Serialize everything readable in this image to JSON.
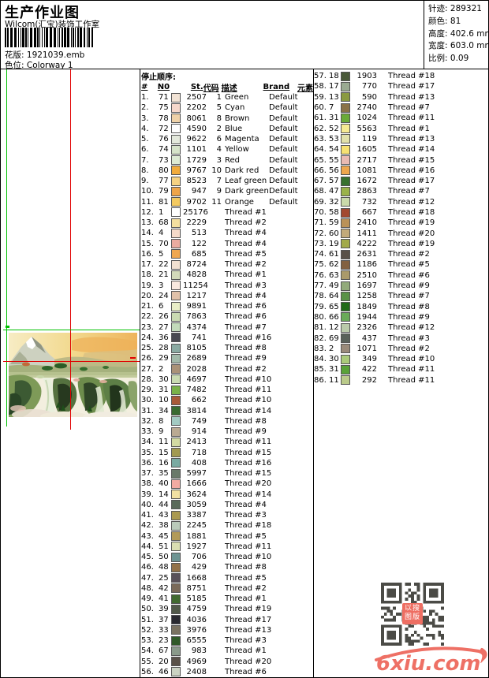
{
  "header": {
    "title": "生产作业图",
    "subtitle": "Wilcom(汇宝)装饰工作室",
    "design_label": "花版:",
    "design_value": "1921039.emb",
    "colorway_label": "色位:",
    "colorway_value": "Colorway 1",
    "stats": [
      {
        "label": "针迹:",
        "value": "289321"
      },
      {
        "label": "颜色:",
        "value": "81"
      },
      {
        "label": "高度:",
        "value": "402.6 mm"
      },
      {
        "label": "宽度:",
        "value": "603.0 mm"
      },
      {
        "label": "比例:",
        "value": "0.09"
      }
    ]
  },
  "table": {
    "stop_header": "停止顺序:",
    "columns": [
      "#",
      "N0",
      "St.",
      "代码",
      "描述",
      "Brand",
      "元素"
    ],
    "rows": [
      {
        "seq": "1.",
        "no": "71",
        "color": "#F2E3D5",
        "st": "2507",
        "code": "1",
        "desc": "Green",
        "brand": "Default"
      },
      {
        "seq": "2.",
        "no": "75",
        "color": "#F6D8CB",
        "st": "2202",
        "code": "5",
        "desc": "Cyan",
        "brand": "Default"
      },
      {
        "seq": "3.",
        "no": "78",
        "color": "#EFD2A8",
        "st": "8061",
        "code": "8",
        "desc": "Brown",
        "brand": "Default"
      },
      {
        "seq": "4.",
        "no": "72",
        "color": "#FFFFFF",
        "st": "4590",
        "code": "2",
        "desc": "Blue",
        "brand": "Default"
      },
      {
        "seq": "5.",
        "no": "76",
        "color": "#E3E8DB",
        "st": "9622",
        "code": "6",
        "desc": "Magenta",
        "brand": "Default"
      },
      {
        "seq": "6.",
        "no": "74",
        "color": "#D6E3C9",
        "st": "1101",
        "code": "4",
        "desc": "Yellow",
        "brand": "Default"
      },
      {
        "seq": "7.",
        "no": "73",
        "color": "#DDEAD3",
        "st": "1729",
        "code": "3",
        "desc": "Red",
        "brand": "Default"
      },
      {
        "seq": "8.",
        "no": "80",
        "color": "#F1AB3B",
        "st": "9767",
        "code": "10",
        "desc": "Dark red",
        "brand": "Default"
      },
      {
        "seq": "9.",
        "no": "77",
        "color": "#F6D282",
        "st": "8523",
        "code": "7",
        "desc": "Leaf green",
        "brand": "Default"
      },
      {
        "seq": "10.",
        "no": "79",
        "color": "#EFA549",
        "st": "947",
        "code": "9",
        "desc": "Dark green",
        "brand": "Default"
      },
      {
        "seq": "11.",
        "no": "81",
        "color": "#F4CA61",
        "st": "9702",
        "code": "11",
        "desc": "Orange",
        "brand": "Default"
      },
      {
        "seq": "12.",
        "no": "1",
        "color": "#FFFFFF",
        "st": "25176",
        "code": "",
        "desc": "Thread #1",
        "brand": ""
      },
      {
        "seq": "13.",
        "no": "68",
        "color": "#F4DF9F",
        "st": "2229",
        "code": "",
        "desc": "Thread #2",
        "brand": ""
      },
      {
        "seq": "14.",
        "no": "4",
        "color": "#F6DAC8",
        "st": "513",
        "code": "",
        "desc": "Thread #4",
        "brand": ""
      },
      {
        "seq": "15.",
        "no": "70",
        "color": "#E9ABA0",
        "st": "122",
        "code": "",
        "desc": "Thread #4",
        "brand": ""
      },
      {
        "seq": "16.",
        "no": "5",
        "color": "#EFA750",
        "st": "685",
        "code": "",
        "desc": "Thread #5",
        "brand": ""
      },
      {
        "seq": "17.",
        "no": "22",
        "color": "#F2E1D1",
        "st": "8724",
        "code": "",
        "desc": "Thread #2",
        "brand": ""
      },
      {
        "seq": "18.",
        "no": "21",
        "color": "#D3DABA",
        "st": "4828",
        "code": "",
        "desc": "Thread #1",
        "brand": ""
      },
      {
        "seq": "19.",
        "no": "3",
        "color": "#F8E8DF",
        "st": "11254",
        "code": "",
        "desc": "Thread #3",
        "brand": ""
      },
      {
        "seq": "20.",
        "no": "24",
        "color": "#E1C2AA",
        "st": "1217",
        "code": "",
        "desc": "Thread #4",
        "brand": ""
      },
      {
        "seq": "21.",
        "no": "6",
        "color": "#E9EEC8",
        "st": "9891",
        "code": "",
        "desc": "Thread #6",
        "brand": ""
      },
      {
        "seq": "22.",
        "no": "26",
        "color": "#CADAB2",
        "st": "7863",
        "code": "",
        "desc": "Thread #6",
        "brand": ""
      },
      {
        "seq": "23.",
        "no": "27",
        "color": "#C3DABA",
        "st": "4374",
        "code": "",
        "desc": "Thread #7",
        "brand": ""
      },
      {
        "seq": "24.",
        "no": "36",
        "color": "#494951",
        "st": "741",
        "code": "",
        "desc": "Thread #16",
        "brand": ""
      },
      {
        "seq": "25.",
        "no": "28",
        "color": "#8AAAA2",
        "st": "8105",
        "code": "",
        "desc": "Thread #8",
        "brand": ""
      },
      {
        "seq": "26.",
        "no": "29",
        "color": "#A2BAAA",
        "st": "2689",
        "code": "",
        "desc": "Thread #9",
        "brand": ""
      },
      {
        "seq": "27.",
        "no": "2",
        "color": "#AA9278",
        "st": "2028",
        "code": "",
        "desc": "Thread #2",
        "brand": ""
      },
      {
        "seq": "28.",
        "no": "30",
        "color": "#CADCB2",
        "st": "4697",
        "code": "",
        "desc": "Thread #10",
        "brand": ""
      },
      {
        "seq": "29.",
        "no": "31",
        "color": "#7AB249",
        "st": "7482",
        "code": "",
        "desc": "Thread #11",
        "brand": ""
      },
      {
        "seq": "30.",
        "no": "10",
        "color": "#A85938",
        "st": "662",
        "code": "",
        "desc": "Thread #10",
        "brand": ""
      },
      {
        "seq": "31.",
        "no": "34",
        "color": "#386A30",
        "st": "3814",
        "code": "",
        "desc": "Thread #14",
        "brand": ""
      },
      {
        "seq": "32.",
        "no": "8",
        "color": "#A2CAC2",
        "st": "749",
        "code": "",
        "desc": "Thread #8",
        "brand": ""
      },
      {
        "seq": "33.",
        "no": "9",
        "color": "#BAAA92",
        "st": "914",
        "code": "",
        "desc": "Thread #9",
        "brand": ""
      },
      {
        "seq": "34.",
        "no": "11",
        "color": "#D2DAA2",
        "st": "2413",
        "code": "",
        "desc": "Thread #11",
        "brand": ""
      },
      {
        "seq": "35.",
        "no": "15",
        "color": "#A29A51",
        "st": "718",
        "code": "",
        "desc": "Thread #15",
        "brand": ""
      },
      {
        "seq": "36.",
        "no": "16",
        "color": "#7AAAA2",
        "st": "408",
        "code": "",
        "desc": "Thread #16",
        "brand": ""
      },
      {
        "seq": "37.",
        "no": "35",
        "color": "#6A7A6A",
        "st": "5997",
        "code": "",
        "desc": "Thread #15",
        "brand": ""
      },
      {
        "seq": "38.",
        "no": "40",
        "color": "#F1AAA2",
        "st": "1666",
        "code": "",
        "desc": "Thread #20",
        "brand": ""
      },
      {
        "seq": "39.",
        "no": "14",
        "color": "#F1E1A2",
        "st": "3624",
        "code": "",
        "desc": "Thread #14",
        "brand": ""
      },
      {
        "seq": "40.",
        "no": "44",
        "color": "#596A59",
        "st": "3059",
        "code": "",
        "desc": "Thread #4",
        "brand": ""
      },
      {
        "seq": "41.",
        "no": "43",
        "color": "#AA9A51",
        "st": "3387",
        "code": "",
        "desc": "Thread #3",
        "brand": ""
      },
      {
        "seq": "42.",
        "no": "38",
        "color": "#BACABA",
        "st": "2245",
        "code": "",
        "desc": "Thread #18",
        "brand": ""
      },
      {
        "seq": "43.",
        "no": "45",
        "color": "#B29A59",
        "st": "1881",
        "code": "",
        "desc": "Thread #5",
        "brand": ""
      },
      {
        "seq": "44.",
        "no": "51",
        "color": "#DADEB2",
        "st": "1927",
        "code": "",
        "desc": "Thread #11",
        "brand": ""
      },
      {
        "seq": "45.",
        "no": "50",
        "color": "#6D9492",
        "st": "706",
        "code": "",
        "desc": "Thread #10",
        "brand": ""
      },
      {
        "seq": "46.",
        "no": "48",
        "color": "#927249",
        "st": "429",
        "code": "",
        "desc": "Thread #8",
        "brand": ""
      },
      {
        "seq": "47.",
        "no": "25",
        "color": "#595159",
        "st": "1668",
        "code": "",
        "desc": "Thread #5",
        "brand": ""
      },
      {
        "seq": "48.",
        "no": "42",
        "color": "#7A6A59",
        "st": "8751",
        "code": "",
        "desc": "Thread #2",
        "brand": ""
      },
      {
        "seq": "49.",
        "no": "41",
        "color": "#416A30",
        "st": "5185",
        "code": "",
        "desc": "Thread #1",
        "brand": ""
      },
      {
        "seq": "50.",
        "no": "39",
        "color": "#515949",
        "st": "4759",
        "code": "",
        "desc": "Thread #19",
        "brand": ""
      },
      {
        "seq": "51.",
        "no": "37",
        "color": "#292930",
        "st": "4036",
        "code": "",
        "desc": "Thread #17",
        "brand": ""
      },
      {
        "seq": "52.",
        "no": "33",
        "color": "#7A7261",
        "st": "3976",
        "code": "",
        "desc": "Thread #13",
        "brand": ""
      },
      {
        "seq": "53.",
        "no": "23",
        "color": "#305928",
        "st": "6555",
        "code": "",
        "desc": "Thread #3",
        "brand": ""
      },
      {
        "seq": "54.",
        "no": "67",
        "color": "#8A9A8A",
        "st": "983",
        "code": "",
        "desc": "Thread #1",
        "brand": ""
      },
      {
        "seq": "55.",
        "no": "20",
        "color": "#595148",
        "st": "4969",
        "code": "",
        "desc": "Thread #20",
        "brand": ""
      },
      {
        "seq": "56.",
        "no": "46",
        "color": "#CAD2C2",
        "st": "2408",
        "code": "",
        "desc": "Thread #6",
        "brand": ""
      },
      {
        "seq": "57.",
        "no": "18",
        "color": "#495938",
        "st": "1903",
        "code": "",
        "desc": "Thread #18",
        "brand": ""
      },
      {
        "seq": "58.",
        "no": "17",
        "color": "#9AAA92",
        "st": "770",
        "code": "",
        "desc": "Thread #17",
        "brand": ""
      },
      {
        "seq": "59.",
        "no": "13",
        "color": "#8A9A41",
        "st": "590",
        "code": "",
        "desc": "Thread #13",
        "brand": ""
      },
      {
        "seq": "60.",
        "no": "7",
        "color": "#8A7248",
        "st": "2740",
        "code": "",
        "desc": "Thread #7",
        "brand": ""
      },
      {
        "seq": "61.",
        "no": "31",
        "color": "#6AAA38",
        "st": "1024",
        "code": "",
        "desc": "Thread #11",
        "brand": ""
      },
      {
        "seq": "62.",
        "no": "52",
        "color": "#F6EA92",
        "st": "5563",
        "code": "",
        "desc": "Thread #1",
        "brand": ""
      },
      {
        "seq": "63.",
        "no": "53",
        "color": "#E1E1AA",
        "st": "119",
        "code": "",
        "desc": "Thread #13",
        "brand": ""
      },
      {
        "seq": "64.",
        "no": "54",
        "color": "#F6E172",
        "st": "1605",
        "code": "",
        "desc": "Thread #14",
        "brand": ""
      },
      {
        "seq": "65.",
        "no": "55",
        "color": "#EABAB2",
        "st": "2717",
        "code": "",
        "desc": "Thread #15",
        "brand": ""
      },
      {
        "seq": "66.",
        "no": "56",
        "color": "#EFA74D",
        "st": "1081",
        "code": "",
        "desc": "Thread #16",
        "brand": ""
      },
      {
        "seq": "67.",
        "no": "57",
        "color": "#38712E",
        "st": "1672",
        "code": "",
        "desc": "Thread #17",
        "brand": ""
      },
      {
        "seq": "68.",
        "no": "47",
        "color": "#9AB249",
        "st": "2863",
        "code": "",
        "desc": "Thread #7",
        "brand": ""
      },
      {
        "seq": "69.",
        "no": "32",
        "color": "#CADAAA",
        "st": "732",
        "code": "",
        "desc": "Thread #12",
        "brand": ""
      },
      {
        "seq": "70.",
        "no": "58",
        "color": "#A24930",
        "st": "667",
        "code": "",
        "desc": "Thread #18",
        "brand": ""
      },
      {
        "seq": "71.",
        "no": "59",
        "color": "#BA9258",
        "st": "2410",
        "code": "",
        "desc": "Thread #19",
        "brand": ""
      },
      {
        "seq": "72.",
        "no": "60",
        "color": "#C2AA7A",
        "st": "1411",
        "code": "",
        "desc": "Thread #20",
        "brand": ""
      },
      {
        "seq": "73.",
        "no": "19",
        "color": "#A2AA49",
        "st": "4222",
        "code": "",
        "desc": "Thread #19",
        "brand": ""
      },
      {
        "seq": "74.",
        "no": "61",
        "color": "#595148",
        "st": "2631",
        "code": "",
        "desc": "Thread #2",
        "brand": ""
      },
      {
        "seq": "75.",
        "no": "62",
        "color": "#826141",
        "st": "1186",
        "code": "",
        "desc": "Thread #5",
        "brand": ""
      },
      {
        "seq": "76.",
        "no": "63",
        "color": "#AA9A6A",
        "st": "2510",
        "code": "",
        "desc": "Thread #6",
        "brand": ""
      },
      {
        "seq": "77.",
        "no": "49",
        "color": "#92AA7A",
        "st": "1697",
        "code": "",
        "desc": "Thread #9",
        "brand": ""
      },
      {
        "seq": "78.",
        "no": "64",
        "color": "#599248",
        "st": "1258",
        "code": "",
        "desc": "Thread #7",
        "brand": ""
      },
      {
        "seq": "79.",
        "no": "65",
        "color": "#216A19",
        "st": "1849",
        "code": "",
        "desc": "Thread #8",
        "brand": ""
      },
      {
        "seq": "80.",
        "no": "66",
        "color": "#6AAA59",
        "st": "1944",
        "code": "",
        "desc": "Thread #9",
        "brand": ""
      },
      {
        "seq": "81.",
        "no": "12",
        "color": "#BACAAA",
        "st": "2326",
        "code": "",
        "desc": "Thread #12",
        "brand": ""
      },
      {
        "seq": "82.",
        "no": "69",
        "color": "#59615A",
        "st": "437",
        "code": "",
        "desc": "Thread #3",
        "brand": ""
      },
      {
        "seq": "83.",
        "no": "2",
        "color": "#9A8A7A",
        "st": "1071",
        "code": "",
        "desc": "Thread #2",
        "brand": ""
      },
      {
        "seq": "84.",
        "no": "30",
        "color": "#AACA7A",
        "st": "349",
        "code": "",
        "desc": "Thread #10",
        "brand": ""
      },
      {
        "seq": "85.",
        "no": "31",
        "color": "#59A238",
        "st": "422",
        "code": "",
        "desc": "Thread #11",
        "brand": ""
      },
      {
        "seq": "86.",
        "no": "11",
        "color": "#BACA8A",
        "st": "292",
        "code": "",
        "desc": "Thread #11",
        "brand": ""
      }
    ]
  },
  "watermark": {
    "site": "6xiu.com",
    "stamp_line1": "以搜",
    "stamp_line2": "图版",
    "accent_color": "#EE7065",
    "stamp_color": "#EE6E62"
  },
  "guides": {
    "green": "#00C000",
    "red": "#E00000"
  }
}
